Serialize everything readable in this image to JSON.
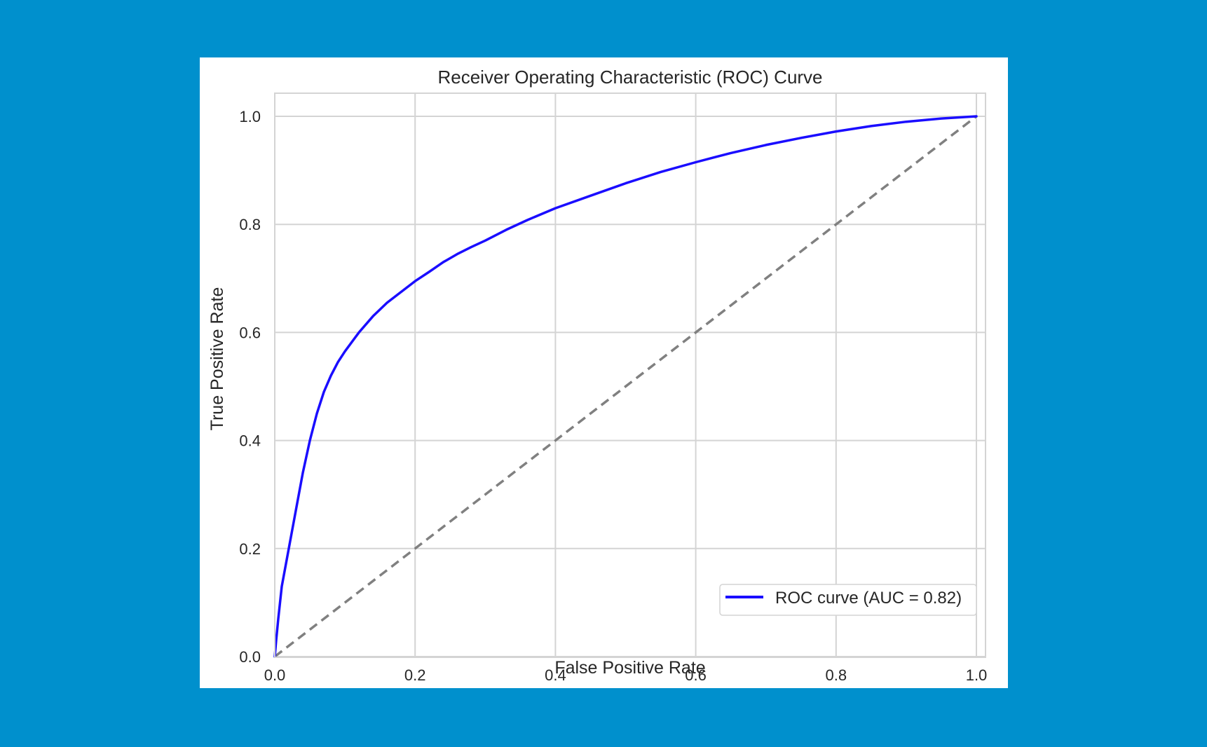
{
  "colors": {
    "background": "#0090cd",
    "figure": "#ffffff",
    "grid": "#d4d4d4",
    "roc_line": "#1a0dff",
    "baseline": "#808080"
  },
  "chart_data": {
    "type": "line",
    "title": "Receiver Operating Characteristic (ROC) Curve",
    "xlabel": "False Positive Rate",
    "ylabel": "True Positive Rate",
    "xlim": [
      0,
      1
    ],
    "ylim": [
      0,
      1
    ],
    "xticks": [
      "0.0",
      "0.2",
      "0.4",
      "0.6",
      "0.8",
      "1.0"
    ],
    "yticks": [
      "0.0",
      "0.2",
      "0.4",
      "0.6",
      "0.8",
      "1.0"
    ],
    "grid": true,
    "legend_position": "lower-right",
    "series": [
      {
        "name": "ROC curve (AUC = 0.82)",
        "color": "#1a0dff",
        "style": "solid",
        "x": [
          0.0,
          0.002,
          0.005,
          0.01,
          0.02,
          0.03,
          0.04,
          0.05,
          0.06,
          0.07,
          0.08,
          0.09,
          0.1,
          0.12,
          0.14,
          0.16,
          0.18,
          0.2,
          0.22,
          0.24,
          0.26,
          0.28,
          0.3,
          0.33,
          0.36,
          0.4,
          0.45,
          0.5,
          0.55,
          0.6,
          0.65,
          0.7,
          0.75,
          0.8,
          0.85,
          0.9,
          0.95,
          1.0
        ],
        "y": [
          0.0,
          0.03,
          0.07,
          0.13,
          0.2,
          0.27,
          0.34,
          0.4,
          0.45,
          0.49,
          0.52,
          0.545,
          0.565,
          0.6,
          0.63,
          0.655,
          0.675,
          0.695,
          0.712,
          0.73,
          0.745,
          0.758,
          0.77,
          0.79,
          0.808,
          0.83,
          0.853,
          0.876,
          0.897,
          0.915,
          0.932,
          0.947,
          0.96,
          0.972,
          0.982,
          0.99,
          0.996,
          1.0
        ]
      },
      {
        "name": "",
        "color": "#808080",
        "style": "dashed",
        "x": [
          0,
          1
        ],
        "y": [
          0,
          1
        ]
      }
    ]
  }
}
